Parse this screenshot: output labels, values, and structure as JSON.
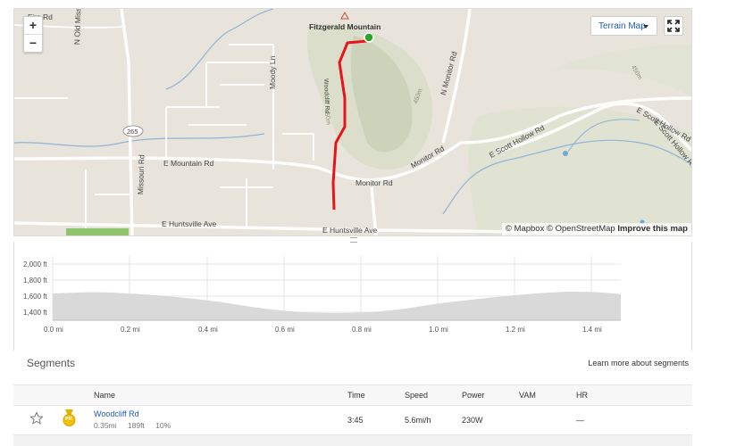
{
  "map": {
    "zoom_in": "+",
    "zoom_out": "−",
    "map_type": "Terrain Map",
    "peak_label": "Fitzgerald Mountain",
    "roads": {
      "fire_rd": "Fire Rd",
      "n_old_missouri": "N Old Missouri Rd",
      "moody_ln": "Moody Ln",
      "woodcliff_rd": "Woodcliff Rd",
      "n_monitor_rd": "N Monitor Rd",
      "route_265": "265",
      "e_mountain_rd": "E Mountain Rd",
      "monitor_rd_1": "Monitor Rd",
      "monitor_rd_2": "Monitor Rd",
      "e_scott_hollow_1": "E Scott Hollow Rd",
      "e_scott_hollow_2": "E Scott Hollow Rd",
      "e_scott_hollow_3": "E Scott Hollow Rd",
      "missouri_rd": "Missouri Rd",
      "e_huntsville_1": "E Huntsville Ave",
      "e_huntsville_2": "E Huntsville Ave",
      "contour_450m_1": "450m",
      "contour_450m_2": "450m",
      "contour_450m_3": "450m"
    },
    "attribution": {
      "mapbox": "© Mapbox",
      "osm": "© OpenStreetMap",
      "improve": "Improve this map"
    },
    "route_color": "#e8141c",
    "start_marker_color": "#2aa52a"
  },
  "elevation": {
    "y_ticks": [
      "2,000 ft",
      "1,800 ft",
      "1,600 ft",
      "1,400 ft"
    ],
    "x_ticks": [
      "0.0 mi",
      "0.2 mi",
      "0.4 mi",
      "0.6 mi",
      "0.8 mi",
      "1.0 mi",
      "1.2 mi",
      "1.4 mi"
    ],
    "fill_color": "#d9d9d9"
  },
  "segments": {
    "title": "Segments",
    "learn_more": "Learn more about segments",
    "headers": {
      "name": "Name",
      "time": "Time",
      "speed": "Speed",
      "power": "Power",
      "vam": "VAM",
      "hr": "HR"
    },
    "rows": [
      {
        "name": "Woodcliff Rd",
        "distance": "0.35mi",
        "elevation": "189ft",
        "grade": "10%",
        "time": "3:45",
        "speed": "5.6mi/h",
        "power": "230W",
        "vam": "",
        "hr": "—",
        "badge": "PR"
      }
    ]
  }
}
